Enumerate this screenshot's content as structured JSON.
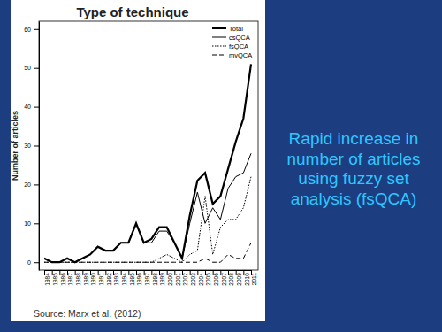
{
  "chart_data": {
    "type": "line",
    "title": "Type of technique",
    "y_label": "Number of articles",
    "categories": [
      "1984",
      "1985",
      "1986",
      "1987",
      "1988",
      "1989",
      "1990",
      "1991",
      "1992",
      "1993",
      "1994",
      "1995",
      "1996",
      "1997",
      "1998",
      "1999",
      "2000",
      "2001",
      "2002",
      "2003",
      "2004",
      "2005",
      "2006",
      "2007",
      "2008",
      "2009",
      "2010",
      "2011"
    ],
    "series": [
      {
        "name": "Total",
        "color": "#000000",
        "line_style": "solid",
        "values": [
          1,
          0,
          0,
          1,
          0,
          1,
          2,
          4,
          3,
          3,
          5,
          5,
          10,
          5,
          6,
          9,
          9,
          5,
          1,
          12,
          21,
          23,
          15,
          17,
          24,
          31,
          37,
          51
        ]
      },
      {
        "name": "csQCA",
        "color": "#000000",
        "line_style": "solid",
        "values": [
          1,
          0,
          0,
          1,
          0,
          1,
          2,
          4,
          3,
          3,
          5,
          5,
          10,
          5,
          5,
          8,
          8,
          5,
          1,
          10,
          18,
          10,
          14,
          11,
          19,
          22,
          23,
          28
        ]
      },
      {
        "name": "fsQCA",
        "color": "#000000",
        "line_style": "dotted",
        "values": [
          0,
          0,
          0,
          0,
          0,
          0,
          0,
          0,
          0,
          0,
          0,
          0,
          0,
          0,
          0,
          1,
          2,
          1,
          0,
          2,
          3,
          17,
          2,
          9,
          11,
          11,
          14,
          22
        ]
      },
      {
        "name": "mvQCA",
        "color": "#000000",
        "line_style": "dashed",
        "values": [
          0,
          0,
          0,
          0,
          0,
          0,
          0,
          0,
          0,
          0,
          0,
          0,
          0,
          0,
          0,
          0,
          0,
          0,
          0,
          0,
          0,
          1,
          0,
          0,
          2,
          1,
          1,
          5
        ]
      }
    ],
    "ylim": [
      -2,
      62
    ],
    "yticks": [
      0,
      10,
      20,
      30,
      40,
      50,
      60
    ],
    "grid": false,
    "legend": "upper right",
    "annotations": [
      "Rapid increase in number of articles using fuzzy set analysis (fsQCA)",
      "Source: Marx et al. (2012)"
    ]
  }
}
